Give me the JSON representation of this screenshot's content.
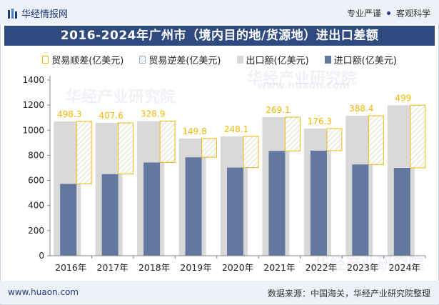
{
  "header": {
    "brand": "华经情报网",
    "tag_left": "专业严谨",
    "tag_right": "客观科学"
  },
  "title": "2016-2024年广州市（境内目的地/货源地）进出口差额",
  "legend": {
    "surplus": "贸易顺差(亿美元)",
    "deficit": "贸易逆差(亿美元)",
    "export": "出口额(亿美元)",
    "import": "进口额(亿美元)"
  },
  "footer": {
    "site": "www.huaon.com",
    "source": "数据来源：中国海关，华经产业研究院整理"
  },
  "watermark": {
    "text": "华经产业研究院",
    "url": "www.huaon.com"
  },
  "colors": {
    "export": "#d9d9d9",
    "import": "#63789f",
    "surplus_border": "#f2b705",
    "label": "#f2b705",
    "title_bg": "#2f4a7f",
    "brand": "#1f3a7a"
  },
  "chart_data": {
    "type": "bar",
    "categories": [
      "2016年",
      "2017年",
      "2018年",
      "2019年",
      "2020年",
      "2021年",
      "2022年",
      "2023年",
      "2024年"
    ],
    "series": [
      {
        "name": "出口额(亿美元)",
        "values": [
          1070,
          1058,
          1072,
          934,
          950,
          1104,
          1013,
          1115,
          1199
        ]
      },
      {
        "name": "进口额(亿美元)",
        "values": [
          572,
          650,
          743,
          784,
          702,
          835,
          837,
          727,
          700
        ]
      },
      {
        "name": "贸易顺差(亿美元)",
        "values": [
          498.3,
          407.6,
          328.9,
          149.8,
          248.1,
          269.1,
          176.3,
          388.4,
          499
        ]
      }
    ],
    "surplus_labels": [
      "498.3",
      "407.6",
      "328.9",
      "149.8",
      "248.1",
      "269.1",
      "176.3",
      "388.4",
      "499"
    ],
    "yticks": [
      "0",
      "200",
      "400",
      "600",
      "800",
      "1000",
      "1200",
      "1400"
    ],
    "ylim": [
      0,
      1400
    ]
  }
}
